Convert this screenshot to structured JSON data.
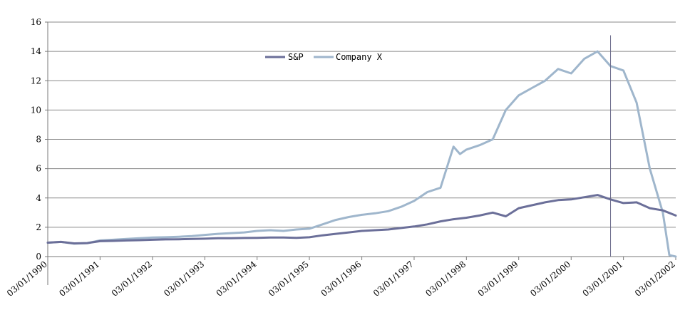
{
  "chart_data": {
    "type": "line",
    "title": "",
    "xlabel": "",
    "ylabel": "",
    "ylim": [
      0,
      16
    ],
    "yticks": [
      0,
      2,
      4,
      6,
      8,
      10,
      12,
      14,
      16
    ],
    "xlim": [
      "1990-03-01",
      "2002-03-01"
    ],
    "xticks": [
      {
        "date": "1990-03-01",
        "label": "03/01/1990"
      },
      {
        "date": "1991-03-01",
        "label": "03/01/1991"
      },
      {
        "date": "1992-03-01",
        "label": "03/01/1992"
      },
      {
        "date": "1993-03-01",
        "label": "03/01/1993"
      },
      {
        "date": "1994-03-01",
        "label": "03/01/1994"
      },
      {
        "date": "1995-03-01",
        "label": "03/01/1995"
      },
      {
        "date": "1996-03-01",
        "label": "03/01/1996"
      },
      {
        "date": "1997-03-01",
        "label": "03/01/1997"
      },
      {
        "date": "1998-03-01",
        "label": "03/01/1998"
      },
      {
        "date": "1999-03-01",
        "label": "03/01/1999"
      },
      {
        "date": "2000-03-01",
        "label": "03/01/2000"
      },
      {
        "date": "2001-03-01",
        "label": "03/01/2001"
      },
      {
        "date": "2002-03-01",
        "label": "03/01/2002"
      }
    ],
    "grid": true,
    "legend_position": "top-center",
    "reference_line_date": "2000-12-01",
    "colors": {
      "sp": "#6b6f99",
      "company": "#9fb6cc",
      "grid": "#8a8a8a",
      "axis": "#7a7a7a",
      "refline": "#6a6a8a"
    },
    "series": [
      {
        "name": "S&P",
        "x": [
          "1990-03-01",
          "1990-06-01",
          "1990-09-01",
          "1990-12-01",
          "1991-03-01",
          "1991-06-01",
          "1991-09-01",
          "1991-12-01",
          "1992-03-01",
          "1992-06-01",
          "1992-09-01",
          "1992-12-01",
          "1993-03-01",
          "1993-06-01",
          "1993-09-01",
          "1993-12-01",
          "1994-03-01",
          "1994-06-01",
          "1994-09-01",
          "1994-12-01",
          "1995-03-01",
          "1995-06-01",
          "1995-09-01",
          "1995-12-01",
          "1996-03-01",
          "1996-06-01",
          "1996-09-01",
          "1996-12-01",
          "1997-03-01",
          "1997-06-01",
          "1997-09-01",
          "1997-12-01",
          "1998-03-01",
          "1998-06-01",
          "1998-09-01",
          "1998-12-01",
          "1999-03-01",
          "1999-06-01",
          "1999-09-01",
          "1999-12-01",
          "2000-03-01",
          "2000-06-01",
          "2000-09-01",
          "2000-12-01",
          "2001-03-01",
          "2001-06-01",
          "2001-09-01",
          "2001-12-01",
          "2002-03-01"
        ],
        "values": [
          0.95,
          1.0,
          0.9,
          0.92,
          1.05,
          1.07,
          1.1,
          1.12,
          1.15,
          1.17,
          1.18,
          1.2,
          1.22,
          1.25,
          1.25,
          1.27,
          1.28,
          1.3,
          1.3,
          1.28,
          1.32,
          1.45,
          1.55,
          1.65,
          1.75,
          1.8,
          1.85,
          1.95,
          2.05,
          2.2,
          2.4,
          2.55,
          2.65,
          2.8,
          3.0,
          2.75,
          3.3,
          3.5,
          3.7,
          3.85,
          3.9,
          4.05,
          4.2,
          3.9,
          3.65,
          3.7,
          3.3,
          3.15,
          2.8
        ]
      },
      {
        "name": "Company X",
        "x": [
          "1990-03-01",
          "1990-06-01",
          "1990-09-01",
          "1990-12-01",
          "1991-03-01",
          "1991-06-01",
          "1991-09-01",
          "1991-12-01",
          "1992-03-01",
          "1992-06-01",
          "1992-09-01",
          "1992-12-01",
          "1993-03-01",
          "1993-06-01",
          "1993-09-01",
          "1993-12-01",
          "1994-03-01",
          "1994-06-01",
          "1994-09-01",
          "1994-12-01",
          "1995-03-01",
          "1995-06-01",
          "1995-09-01",
          "1995-12-01",
          "1996-03-01",
          "1996-06-01",
          "1996-09-01",
          "1996-12-01",
          "1997-03-01",
          "1997-06-01",
          "1997-09-01",
          "1997-12-01",
          "1998-01-15",
          "1998-03-01",
          "1998-06-01",
          "1998-09-01",
          "1998-12-01",
          "1999-03-01",
          "1999-06-01",
          "1999-09-01",
          "1999-12-01",
          "2000-03-01",
          "2000-06-01",
          "2000-09-01",
          "2000-12-01",
          "2001-03-01",
          "2001-06-01",
          "2001-09-01",
          "2001-12-01",
          "2002-01-15",
          "2002-03-01"
        ],
        "values": [
          0.95,
          1.0,
          0.88,
          0.92,
          1.1,
          1.15,
          1.2,
          1.25,
          1.3,
          1.32,
          1.35,
          1.4,
          1.48,
          1.55,
          1.6,
          1.65,
          1.75,
          1.8,
          1.75,
          1.85,
          1.9,
          2.2,
          2.5,
          2.7,
          2.85,
          2.95,
          3.1,
          3.4,
          3.8,
          4.4,
          4.7,
          7.5,
          7.0,
          7.3,
          7.6,
          8.0,
          10.0,
          11.0,
          11.5,
          12.0,
          12.8,
          12.5,
          13.5,
          14.0,
          13.0,
          12.7,
          10.5,
          6.0,
          3.0,
          0.1,
          0.0
        ]
      }
    ]
  }
}
